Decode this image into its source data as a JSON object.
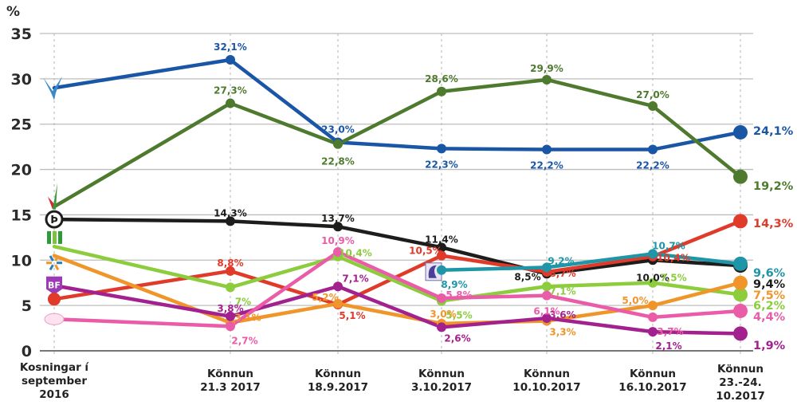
{
  "chart_data": {
    "type": "line",
    "title": "",
    "ylabel": "%",
    "xlabel": "",
    "ylim": [
      0,
      35
    ],
    "yticks": [
      0,
      5,
      10,
      15,
      20,
      25,
      30,
      35
    ],
    "grid": true,
    "categories": [
      [
        "Kosningar í",
        "september",
        "2016"
      ],
      [
        "Könnun",
        "21.3 2017"
      ],
      [
        "Könnun",
        "18.9.2017"
      ],
      [
        "Könnun",
        "3.10.2017"
      ],
      [
        "Könnun",
        "10.10.2017"
      ],
      [
        "Könnun",
        "16.10.2017"
      ],
      [
        "Könnun",
        "23.-24.",
        "10.2017"
      ]
    ],
    "series": [
      {
        "name": "Sjálfstæðisflokkurinn",
        "icon": "falcon-logo-icon",
        "color": "#1a56a6",
        "values": [
          29.0,
          32.1,
          23.0,
          22.3,
          22.2,
          22.2,
          24.1
        ],
        "labels": [
          "",
          "32,1%",
          "23,0%",
          "22,3%",
          "22,2%",
          "22,2%",
          "24,1%"
        ]
      },
      {
        "name": "Vinstri græn",
        "icon": "vg-logo-icon",
        "color": "#4e7a2e",
        "values": [
          15.9,
          27.3,
          22.8,
          28.6,
          29.9,
          27.0,
          19.2
        ],
        "labels": [
          "",
          "27,3%",
          "22,8%",
          "28,6%",
          "29,9%",
          "27,0%",
          "19,2%"
        ]
      },
      {
        "name": "Píratar",
        "icon": "pirate-logo-icon",
        "color": "#1d1d1b",
        "values": [
          14.5,
          14.3,
          13.7,
          11.4,
          8.5,
          10.0,
          9.4
        ],
        "labels": [
          "",
          "14,3%",
          "13,7%",
          "11,4%",
          "8,5%",
          "10,0%",
          "9,4%"
        ]
      },
      {
        "name": "Samfylkingin",
        "icon": "rose-logo-icon",
        "color": "#e03a2a",
        "values": [
          5.7,
          8.8,
          5.1,
          10.5,
          8.7,
          10.4,
          14.3
        ],
        "labels": [
          "",
          "8,8%",
          "5,1%",
          "10,5%",
          "8,7%",
          "10,4%",
          "14,3%"
        ]
      },
      {
        "name": "Miðflokkurinn",
        "icon": "horse-logo-icon",
        "color": "#1f95a8",
        "values": [
          null,
          null,
          null,
          8.9,
          9.2,
          10.7,
          9.6
        ],
        "labels": [
          "",
          "",
          "",
          "8,9%",
          "9,2%",
          "10,7%",
          "9,6%"
        ]
      },
      {
        "name": "Framsóknarflokkurinn",
        "icon": "framsokn-logo-icon",
        "color": "#8ccc3d",
        "values": [
          11.5,
          7.0,
          10.4,
          5.5,
          7.1,
          7.5,
          6.2
        ],
        "labels": [
          "",
          "7%",
          "10,4%",
          "5,5%",
          "7,1%",
          "7,5%",
          "6,2%"
        ]
      },
      {
        "name": "Viðreisn",
        "icon": "vidreisn-logo-icon",
        "color": "#f0952a",
        "values": [
          10.5,
          3.1,
          5.2,
          3.0,
          3.3,
          5.0,
          7.5
        ],
        "labels": [
          "",
          "3,1%",
          "5,2%",
          "3,0%",
          "3,3%",
          "5,0%",
          "7,5%"
        ]
      },
      {
        "name": "Björt framtíð",
        "icon": "bf-logo-icon",
        "color": "#a3218e",
        "values": [
          7.2,
          3.8,
          7.1,
          2.6,
          3.6,
          2.1,
          1.9
        ],
        "labels": [
          "",
          "3,8%",
          "7,1%",
          "2,6%",
          "3,6%",
          "2,1%",
          "1,9%"
        ]
      },
      {
        "name": "Flokkur fólksins",
        "icon": "flokkur-folksins-logo-icon",
        "color": "#ea5ca8",
        "values": [
          3.5,
          2.7,
          10.9,
          5.8,
          6.1,
          3.7,
          4.4
        ],
        "labels": [
          "",
          "2,7%",
          "10,9%",
          "5,8%",
          "6,1%",
          "3,7%",
          "4,4%"
        ]
      }
    ]
  }
}
